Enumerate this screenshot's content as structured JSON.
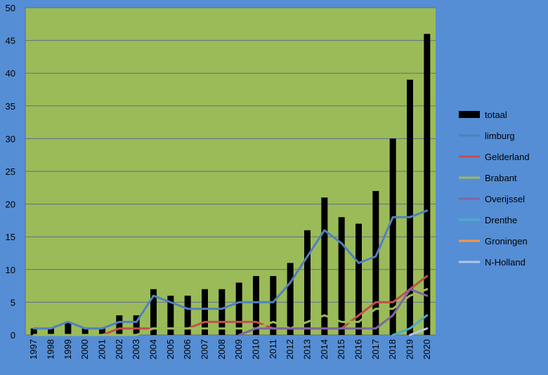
{
  "chart_data": {
    "type": "bar",
    "colors": {
      "background": "#558ed5",
      "plot_area": "#9bbb59",
      "gridline": "#5a6e8c",
      "totaal": "#000000",
      "limburg": "#4f81bd",
      "Gelderland": "#c0504d",
      "Brabant": "#9bbb59",
      "Overijssel": "#8064a2",
      "Drenthe": "#4bacc6",
      "Groningen": "#f79646",
      "N-Holland": "#b3c6e7"
    },
    "categories": [
      "1997",
      "1998",
      "1999",
      "2000",
      "2001",
      "2002",
      "2003",
      "2004",
      "2005",
      "2006",
      "2007",
      "2008",
      "2009",
      "2010",
      "2011",
      "2012",
      "2013",
      "2014",
      "2015",
      "2016",
      "2017",
      "2018",
      "2019",
      "2020"
    ],
    "ylim": [
      0,
      50
    ],
    "yticks": [
      0,
      5,
      10,
      15,
      20,
      25,
      30,
      35,
      40,
      45,
      50
    ],
    "grid": true,
    "legend_position": "right",
    "series": [
      {
        "name": "totaal",
        "kind": "bar",
        "color": "#000000",
        "values": [
          1,
          1,
          2,
          1,
          1,
          3,
          3,
          7,
          6,
          6,
          7,
          7,
          8,
          9,
          9,
          11,
          16,
          21,
          18,
          17,
          22,
          30,
          39,
          46
        ]
      },
      {
        "name": "limburg",
        "kind": "line",
        "color": "#4f81bd",
        "values": [
          1,
          1,
          2,
          1,
          1,
          2,
          2,
          6,
          5,
          4,
          4,
          4,
          5,
          5,
          5,
          8,
          12,
          16,
          14,
          11,
          12,
          18,
          18,
          19
        ]
      },
      {
        "name": "Gelderland",
        "kind": "line",
        "color": "#c0504d",
        "values": [
          0,
          0,
          0,
          0,
          0,
          1,
          1,
          1,
          1,
          1,
          2,
          2,
          2,
          2,
          1,
          1,
          1,
          1,
          1,
          3,
          5,
          5,
          7,
          9
        ]
      },
      {
        "name": "Brabant",
        "kind": "line",
        "color": "#9bbb59",
        "values": [
          0,
          0,
          0,
          0,
          0,
          0,
          0,
          1,
          1,
          1,
          1,
          1,
          1,
          1,
          2,
          1,
          2,
          3,
          2,
          2,
          4,
          4,
          6,
          7
        ]
      },
      {
        "name": "Overijssel",
        "kind": "line",
        "color": "#8064a2",
        "values": [
          null,
          null,
          null,
          null,
          null,
          null,
          null,
          null,
          null,
          null,
          null,
          null,
          0,
          1,
          1,
          1,
          1,
          1,
          1,
          1,
          1,
          3,
          7,
          6
        ]
      },
      {
        "name": "Drenthe",
        "kind": "line",
        "color": "#4bacc6",
        "values": [
          null,
          null,
          null,
          null,
          null,
          null,
          null,
          null,
          null,
          null,
          null,
          null,
          null,
          null,
          null,
          null,
          null,
          null,
          null,
          null,
          null,
          0,
          1,
          3
        ]
      },
      {
        "name": "Groningen",
        "kind": "line",
        "color": "#f79646",
        "values": [
          null,
          null,
          null,
          null,
          null,
          null,
          null,
          null,
          null,
          null,
          null,
          null,
          null,
          null,
          null,
          null,
          null,
          null,
          null,
          null,
          null,
          null,
          null,
          null
        ]
      },
      {
        "name": "N-Holland",
        "kind": "line",
        "color": "#b3c6e7",
        "values": [
          null,
          null,
          null,
          null,
          null,
          null,
          null,
          null,
          null,
          null,
          null,
          null,
          null,
          null,
          null,
          null,
          null,
          null,
          null,
          null,
          null,
          null,
          0,
          1
        ]
      }
    ]
  }
}
